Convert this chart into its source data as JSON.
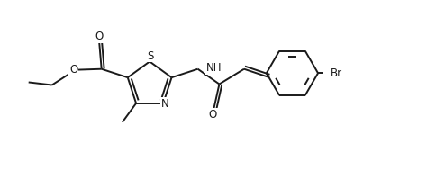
{
  "bg_color": "#ffffff",
  "line_color": "#1a1a1a",
  "bond_lw": 1.4,
  "font_size": 8.5,
  "fig_width": 4.94,
  "fig_height": 1.99,
  "xlim": [
    0,
    9.88
  ],
  "ylim": [
    0,
    3.98
  ]
}
